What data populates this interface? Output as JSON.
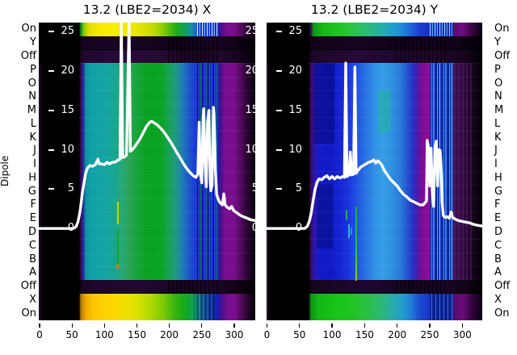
{
  "figure": {
    "titles": {
      "x_panel": "13.2 (LBE2=2034) X",
      "y_panel": "13.2 (LBE2=2034) Y"
    },
    "y_axis_label": "Dipole",
    "inner_value_ticks": [
      25,
      20,
      15,
      10,
      5,
      0
    ],
    "x_tick_labels": [
      0,
      50,
      100,
      150,
      200,
      250,
      300
    ]
  },
  "chart_data": [
    {
      "type": "heatmap",
      "panel": "X",
      "title": "13.2 (LBE2=2034) X",
      "xlabel": "",
      "x_range": [
        0,
        334
      ],
      "x_ticks": [
        0,
        50,
        100,
        150,
        200,
        250,
        300
      ],
      "row_labels": [
        "On",
        "Y",
        "Off",
        "P",
        "O",
        "N",
        "M",
        "L",
        "K",
        "J",
        "I",
        "H",
        "G",
        "F",
        "E",
        "D",
        "C",
        "B",
        "A",
        "Off",
        "X",
        "On"
      ],
      "row_axis_label": "Dipole",
      "colormap": "black-purple-blue-cyan-green-yellow (low to high intensity)",
      "overlay_line": {
        "name": "white intensity profile",
        "value_ticks": [
          0,
          5,
          10,
          15,
          20,
          25
        ],
        "points": [
          [
            0,
            0
          ],
          [
            20,
            0
          ],
          [
            40,
            0
          ],
          [
            52,
            0
          ],
          [
            56,
            0.2
          ],
          [
            59,
            0.8
          ],
          [
            62,
            2
          ],
          [
            64,
            3.2
          ],
          [
            66,
            4.6
          ],
          [
            69,
            6
          ],
          [
            71,
            7
          ],
          [
            74,
            7.7
          ],
          [
            78,
            8
          ],
          [
            82,
            7.9
          ],
          [
            86,
            8.1
          ],
          [
            90,
            8.8
          ],
          [
            92,
            8.2
          ],
          [
            96,
            8.2
          ],
          [
            100,
            8.1
          ],
          [
            104,
            8.4
          ],
          [
            108,
            8.2
          ],
          [
            112,
            8.4
          ],
          [
            116,
            8.4
          ],
          [
            119,
            8.6
          ],
          [
            124,
            8.8
          ],
          [
            126,
            26.5
          ],
          [
            128,
            9
          ],
          [
            131,
            9.1
          ],
          [
            134,
            9.3
          ],
          [
            138,
            26.5
          ],
          [
            140,
            9.8
          ],
          [
            143,
            10
          ],
          [
            146,
            10.3
          ],
          [
            150,
            10.8
          ],
          [
            155,
            11.4
          ],
          [
            160,
            12.2
          ],
          [
            165,
            13
          ],
          [
            170,
            13.5
          ],
          [
            173,
            13.6
          ],
          [
            177,
            13.4
          ],
          [
            182,
            13.1
          ],
          [
            187,
            12.7
          ],
          [
            192,
            12.2
          ],
          [
            197,
            11.6
          ],
          [
            202,
            11
          ],
          [
            207,
            10.3
          ],
          [
            212,
            9.6
          ],
          [
            217,
            8.9
          ],
          [
            222,
            8.2
          ],
          [
            227,
            7.6
          ],
          [
            232,
            7.1
          ],
          [
            237,
            6.7
          ],
          [
            241,
            6.5
          ],
          [
            244,
            6.9
          ],
          [
            246,
            13.5
          ],
          [
            248,
            7
          ],
          [
            250,
            5.8
          ],
          [
            252,
            14
          ],
          [
            253,
            15.2
          ],
          [
            255,
            8.3
          ],
          [
            257,
            5.3
          ],
          [
            259,
            13.5
          ],
          [
            261,
            15
          ],
          [
            263,
            6
          ],
          [
            264,
            4.8
          ],
          [
            266,
            5.5
          ],
          [
            268,
            15.4
          ],
          [
            269,
            14.5
          ],
          [
            271,
            7.5
          ],
          [
            273,
            4.3
          ],
          [
            276,
            3.6
          ],
          [
            279,
            3.2
          ],
          [
            282,
            3
          ],
          [
            284,
            4.4
          ],
          [
            286,
            3
          ],
          [
            289,
            2.7
          ],
          [
            293,
            2.5
          ],
          [
            296,
            2.8
          ],
          [
            299,
            2.3
          ],
          [
            304,
            2
          ],
          [
            309,
            1.7
          ],
          [
            314,
            1.5
          ],
          [
            320,
            1.3
          ],
          [
            326,
            1.1
          ],
          [
            333,
            1
          ]
        ]
      }
    },
    {
      "type": "heatmap",
      "panel": "Y",
      "title": "13.2 (LBE2=2034) Y",
      "xlabel": "",
      "x_range": [
        0,
        332
      ],
      "x_ticks": [
        0,
        50,
        100,
        150,
        200,
        250,
        300
      ],
      "row_labels": [
        "On",
        "Y",
        "Off",
        "P",
        "O",
        "N",
        "M",
        "L",
        "K",
        "J",
        "I",
        "H",
        "G",
        "F",
        "E",
        "D",
        "C",
        "B",
        "A",
        "Off",
        "X",
        "On"
      ],
      "row_axis_label": "Dipole",
      "colormap": "black-purple-blue-cyan-green-yellow (low to high intensity)",
      "overlay_line": {
        "name": "white intensity profile",
        "value_ticks": [
          0,
          5,
          10,
          15,
          20,
          25
        ],
        "points": [
          [
            0,
            0
          ],
          [
            20,
            0
          ],
          [
            40,
            0
          ],
          [
            58,
            0
          ],
          [
            62,
            0.3
          ],
          [
            65,
            0.9
          ],
          [
            68,
            2
          ],
          [
            71,
            3.6
          ],
          [
            74,
            5
          ],
          [
            77,
            5.9
          ],
          [
            80,
            6.3
          ],
          [
            84,
            6.2
          ],
          [
            88,
            6.5
          ],
          [
            92,
            6.7
          ],
          [
            96,
            6.3
          ],
          [
            100,
            6.6
          ],
          [
            104,
            6.3
          ],
          [
            108,
            6.6
          ],
          [
            112,
            6.4
          ],
          [
            116,
            6.6
          ],
          [
            119,
            6.5
          ],
          [
            121,
            21
          ],
          [
            123,
            6.6
          ],
          [
            126,
            6.8
          ],
          [
            128,
            9.7
          ],
          [
            130,
            6.8
          ],
          [
            133,
            6.9
          ],
          [
            135,
            20.5
          ],
          [
            137,
            7
          ],
          [
            140,
            7.4
          ],
          [
            144,
            7.8
          ],
          [
            148,
            8
          ],
          [
            152,
            8.2
          ],
          [
            156,
            8.4
          ],
          [
            160,
            8.5
          ],
          [
            164,
            8.7
          ],
          [
            167,
            8.3
          ],
          [
            170,
            8.6
          ],
          [
            173,
            8.4
          ],
          [
            176,
            8.1
          ],
          [
            180,
            7.4
          ],
          [
            185,
            6.8
          ],
          [
            190,
            6.2
          ],
          [
            195,
            5.8
          ],
          [
            200,
            5.4
          ],
          [
            205,
            4.8
          ],
          [
            210,
            4.3
          ],
          [
            215,
            4
          ],
          [
            220,
            3.6
          ],
          [
            225,
            3.4
          ],
          [
            230,
            3.2
          ],
          [
            235,
            3
          ],
          [
            240,
            3
          ],
          [
            243,
            3.3
          ],
          [
            245,
            3.5
          ],
          [
            246,
            11.2
          ],
          [
            248,
            10.4
          ],
          [
            250,
            5.4
          ],
          [
            252,
            10.2
          ],
          [
            254,
            4.4
          ],
          [
            256,
            2.8
          ],
          [
            258,
            10.2
          ],
          [
            260,
            11.1
          ],
          [
            262,
            5.4
          ],
          [
            264,
            10
          ],
          [
            266,
            9.9
          ],
          [
            268,
            6.8
          ],
          [
            269,
            3.3
          ],
          [
            271,
            1.6
          ],
          [
            274,
            1.4
          ],
          [
            277,
            1.5
          ],
          [
            280,
            1.3
          ],
          [
            283,
            2.1
          ],
          [
            285,
            1.4
          ],
          [
            289,
            1.2
          ],
          [
            294,
            1
          ],
          [
            300,
            0.9
          ],
          [
            306,
            0.8
          ],
          [
            312,
            0.7
          ],
          [
            318,
            0.5
          ],
          [
            324,
            0.4
          ],
          [
            331,
            0.3
          ]
        ]
      }
    }
  ]
}
